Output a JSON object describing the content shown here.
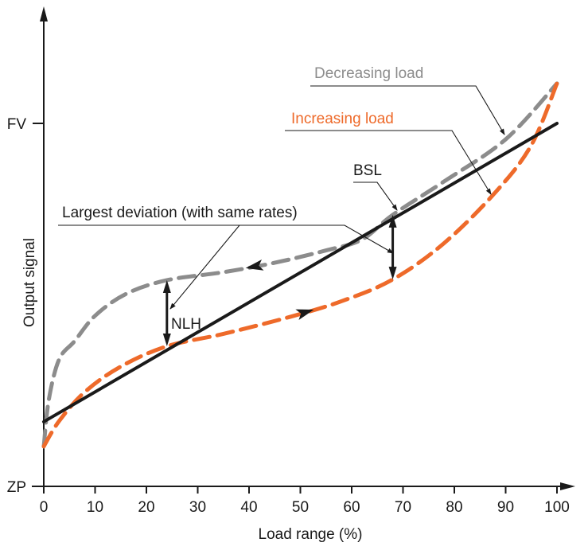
{
  "chart_data": {
    "type": "line",
    "title": "",
    "xlabel": "Load range (%)",
    "ylabel": "Output signal",
    "xlim": [
      0,
      100
    ],
    "ylim_labels": {
      "ZP": 0,
      "FV": 100
    },
    "x_ticks": [
      "0",
      "10",
      "20",
      "30",
      "40",
      "50",
      "60",
      "70",
      "80",
      "90",
      "100"
    ],
    "x_tick_values": [
      0,
      10,
      20,
      30,
      40,
      50,
      60,
      70,
      80,
      90,
      100
    ],
    "y_tick_labels": [
      {
        "label": "ZP",
        "value": 0
      },
      {
        "label": "FV",
        "value": 100
      }
    ],
    "grid": false,
    "series": [
      {
        "name": "BSL",
        "color": "#1a1a1a",
        "style": "solid",
        "x": [
          0,
          100
        ],
        "y": [
          17.8,
          100
        ]
      },
      {
        "name": "Increasing load",
        "color": "#ee6a2a",
        "style": "dashed",
        "x": [
          0,
          3,
          8,
          15,
          24,
          35,
          48,
          58,
          68,
          78,
          88,
          95,
          100
        ],
        "y": [
          11,
          18,
          26,
          33,
          38.6,
          42,
          46.7,
          51,
          57,
          67,
          81,
          94,
          111
        ]
      },
      {
        "name": "Decreasing load",
        "color": "#8c8c8c",
        "style": "dashed",
        "x": [
          0,
          1,
          3,
          6,
          10,
          16,
          24,
          35,
          45,
          55,
          62,
          68,
          78,
          90,
          100
        ],
        "y": [
          11,
          24,
          35,
          40,
          47,
          53,
          56.8,
          59,
          61.6,
          65,
          68,
          74.8,
          84,
          95.6,
          111
        ]
      }
    ],
    "annotations": [
      {
        "text": "Decreasing load",
        "color": "#8c8c8c",
        "points_to": {
          "x": 90,
          "y": 95.6
        }
      },
      {
        "text": "Increasing load",
        "color": "#ee6a2a",
        "points_to": {
          "x": 87,
          "y": 80
        }
      },
      {
        "text": "BSL",
        "color": "#1a1a1a",
        "points_to": {
          "x": 68,
          "y": 74
        }
      },
      {
        "text": "Largest deviation (with same rates)",
        "color": "#1a1a1a",
        "points_to": [
          {
            "x": 24,
            "y": 48
          },
          {
            "x": 68,
            "y": 70
          }
        ]
      },
      {
        "text": "NLH",
        "color": "#1a1a1a"
      }
    ],
    "deviation_arrows": [
      {
        "x": 24,
        "y_from": 38.6,
        "y_to": 56.8
      },
      {
        "x": 68,
        "y_from": 57,
        "y_to": 74.8
      }
    ],
    "direction_markers": [
      {
        "series": "Decreasing load",
        "x": 41,
        "direction": "left"
      },
      {
        "series": "Increasing load",
        "x": 51,
        "direction": "right"
      }
    ]
  }
}
